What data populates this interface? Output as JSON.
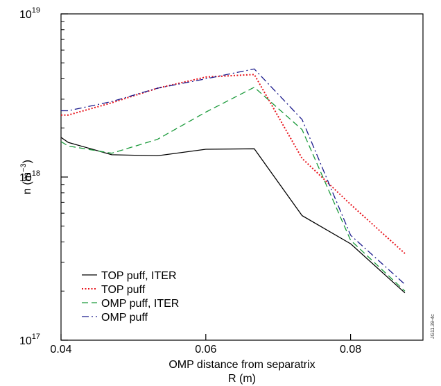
{
  "chart_data": {
    "type": "line",
    "title": "",
    "xlabel_line1": "OMP distance from separatrix",
    "xlabel_line2": "R (m)",
    "ylabel": "n (m",
    "ylabel_exp": "−3",
    "ylabel_close": ")",
    "xlim": [
      0.04,
      0.09
    ],
    "ylim": [
      1e+17,
      1e+19
    ],
    "yscale": "log",
    "grid": false,
    "legend_position": "bottom-left",
    "x_ticks": [
      {
        "value": 0.04,
        "label": "0.04"
      },
      {
        "value": 0.06,
        "label": "0.06"
      },
      {
        "value": 0.08,
        "label": "0.08"
      }
    ],
    "y_ticks": [
      {
        "value": 1e+17,
        "base": "10",
        "exp": "17"
      },
      {
        "value": 1e+18,
        "base": "10",
        "exp": "18"
      },
      {
        "value": 1e+19,
        "base": "10",
        "exp": "19"
      }
    ],
    "series": [
      {
        "name": "TOP puff, ITER",
        "color": "#000000",
        "dash": "solid",
        "x": [
          0.04,
          0.041,
          0.047,
          0.0533,
          0.06,
          0.0667,
          0.0733,
          0.08,
          0.0875
        ],
        "y": [
          1.75e+18,
          1.63e+18,
          1.37e+18,
          1.35e+18,
          1.48e+18,
          1.49e+18,
          5.8e+17,
          3.9e+17,
          1.95e+17
        ]
      },
      {
        "name": "TOP puff",
        "color": "#e8141c",
        "dash": "dotted",
        "x": [
          0.04,
          0.041,
          0.047,
          0.0533,
          0.06,
          0.0667,
          0.0733,
          0.08,
          0.0875
        ],
        "y": [
          2.4e+18,
          2.4e+18,
          2.85e+18,
          3.5e+18,
          4.1e+18,
          4.25e+18,
          1.3e+18,
          6.8e+17,
          3.4e+17
        ]
      },
      {
        "name": "OMP puff, ITER",
        "color": "#1a9a3a",
        "dash": "dashed",
        "x": [
          0.04,
          0.041,
          0.047,
          0.0533,
          0.06,
          0.0667,
          0.0733,
          0.08,
          0.0875
        ],
        "y": [
          1.65e+18,
          1.55e+18,
          1.4e+18,
          1.7e+18,
          2.5e+18,
          3.55e+18,
          1.95e+18,
          4.1e+17,
          2e+17
        ]
      },
      {
        "name": "OMP puff",
        "color": "#1a1a8c",
        "dash": "dashdot",
        "x": [
          0.04,
          0.041,
          0.047,
          0.0533,
          0.06,
          0.0667,
          0.0733,
          0.08,
          0.0875
        ],
        "y": [
          2.55e+18,
          2.55e+18,
          2.9e+18,
          3.5e+18,
          4e+18,
          4.6e+18,
          2.25e+18,
          4.4e+17,
          2.2e+17
        ]
      }
    ],
    "stamp": "JG11.39-4c"
  }
}
